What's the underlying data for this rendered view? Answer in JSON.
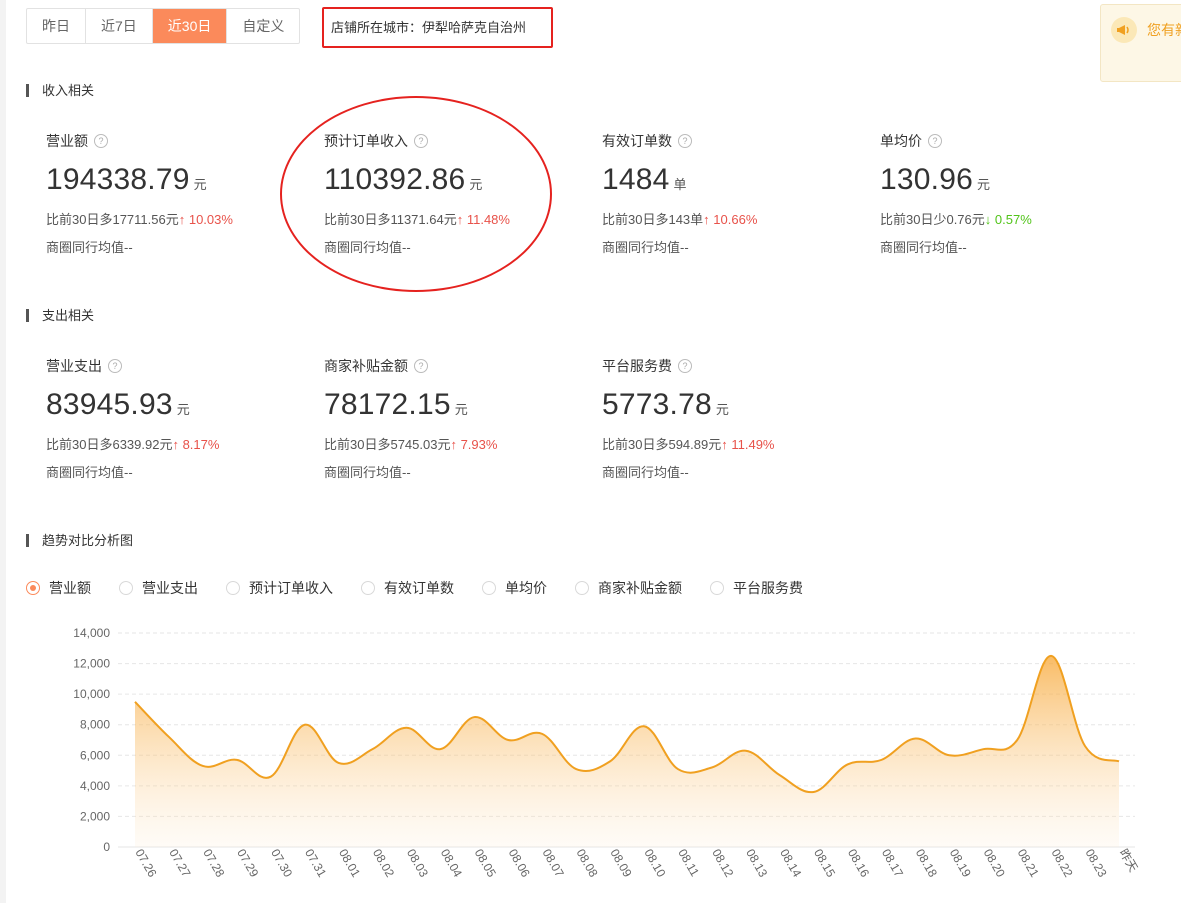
{
  "tabs": [
    "昨日",
    "近7日",
    "近30日",
    "自定义"
  ],
  "active_tab_index": 2,
  "city": "店铺所在城市：伊犁哈萨克自治州",
  "notice_text": "您有新",
  "sections": {
    "income": "收入相关",
    "expense": "支出相关",
    "trend": "趋势对比分析图"
  },
  "metrics": [
    {
      "label": "营业额",
      "value": "194338.79",
      "unit": "元",
      "compare": "比前30日多17711.56元",
      "arrow": "↑",
      "pct": "10.03%",
      "dir": "up",
      "peer": "商圈同行均值--"
    },
    {
      "label": "预计订单收入",
      "value": "110392.86",
      "unit": "元",
      "compare": "比前30日多11371.64元",
      "arrow": "↑",
      "pct": "11.48%",
      "dir": "up",
      "peer": "商圈同行均值--"
    },
    {
      "label": "有效订单数",
      "value": "1484",
      "unit": "单",
      "compare": "比前30日多143单",
      "arrow": "↑",
      "pct": "10.66%",
      "dir": "up",
      "peer": "商圈同行均值--"
    },
    {
      "label": "单均价",
      "value": "130.96",
      "unit": "元",
      "compare": "比前30日少0.76元",
      "arrow": "↓",
      "pct": "0.57%",
      "dir": "down",
      "peer": "商圈同行均值--"
    },
    {
      "label": "营业支出",
      "value": "83945.93",
      "unit": "元",
      "compare": "比前30日多6339.92元",
      "arrow": "↑",
      "pct": "8.17%",
      "dir": "up",
      "peer": "商圈同行均值--"
    },
    {
      "label": "商家补贴金额",
      "value": "78172.15",
      "unit": "元",
      "compare": "比前30日多5745.03元",
      "arrow": "↑",
      "pct": "7.93%",
      "dir": "up",
      "peer": "商圈同行均值--"
    },
    {
      "label": "平台服务费",
      "value": "5773.78",
      "unit": "元",
      "compare": "比前30日多594.89元",
      "arrow": "↑",
      "pct": "11.49%",
      "dir": "up",
      "peer": "商圈同行均值--"
    }
  ],
  "radios": [
    "营业额",
    "营业支出",
    "预计订单收入",
    "有效订单数",
    "单均价",
    "商家补贴金额",
    "平台服务费"
  ],
  "radio_checked_index": 0,
  "colors": {
    "accent": "#fb8a5b",
    "line": "#f0a020",
    "up": "#e8524a",
    "down": "#52c41a",
    "highlight": "#e5221f"
  },
  "chart_data": {
    "type": "area",
    "x": [
      "07.26",
      "07.27",
      "07.28",
      "07.29",
      "07.30",
      "07.31",
      "08.01",
      "08.02",
      "08.03",
      "08.04",
      "08.05",
      "08.06",
      "08.07",
      "08.08",
      "08.09",
      "08.10",
      "08.11",
      "08.12",
      "08.13",
      "08.14",
      "08.15",
      "08.16",
      "08.17",
      "08.18",
      "08.19",
      "08.20",
      "08.21",
      "08.22",
      "08.23",
      "昨天"
    ],
    "series": [
      {
        "name": "营业额",
        "values": [
          9500,
          7200,
          5300,
          5700,
          4600,
          8000,
          5500,
          6400,
          7800,
          6400,
          8500,
          7000,
          7400,
          5100,
          5600,
          7900,
          5100,
          5200,
          6300,
          4700,
          3600,
          5400,
          5700,
          7100,
          6000,
          6400,
          7000,
          12500,
          6600,
          5600
        ]
      }
    ],
    "yticks": [
      "0",
      "2,000",
      "4,000",
      "6,000",
      "8,000",
      "10,000",
      "12,000",
      "14,000"
    ],
    "ylim": [
      0,
      14000
    ],
    "grid": true
  }
}
